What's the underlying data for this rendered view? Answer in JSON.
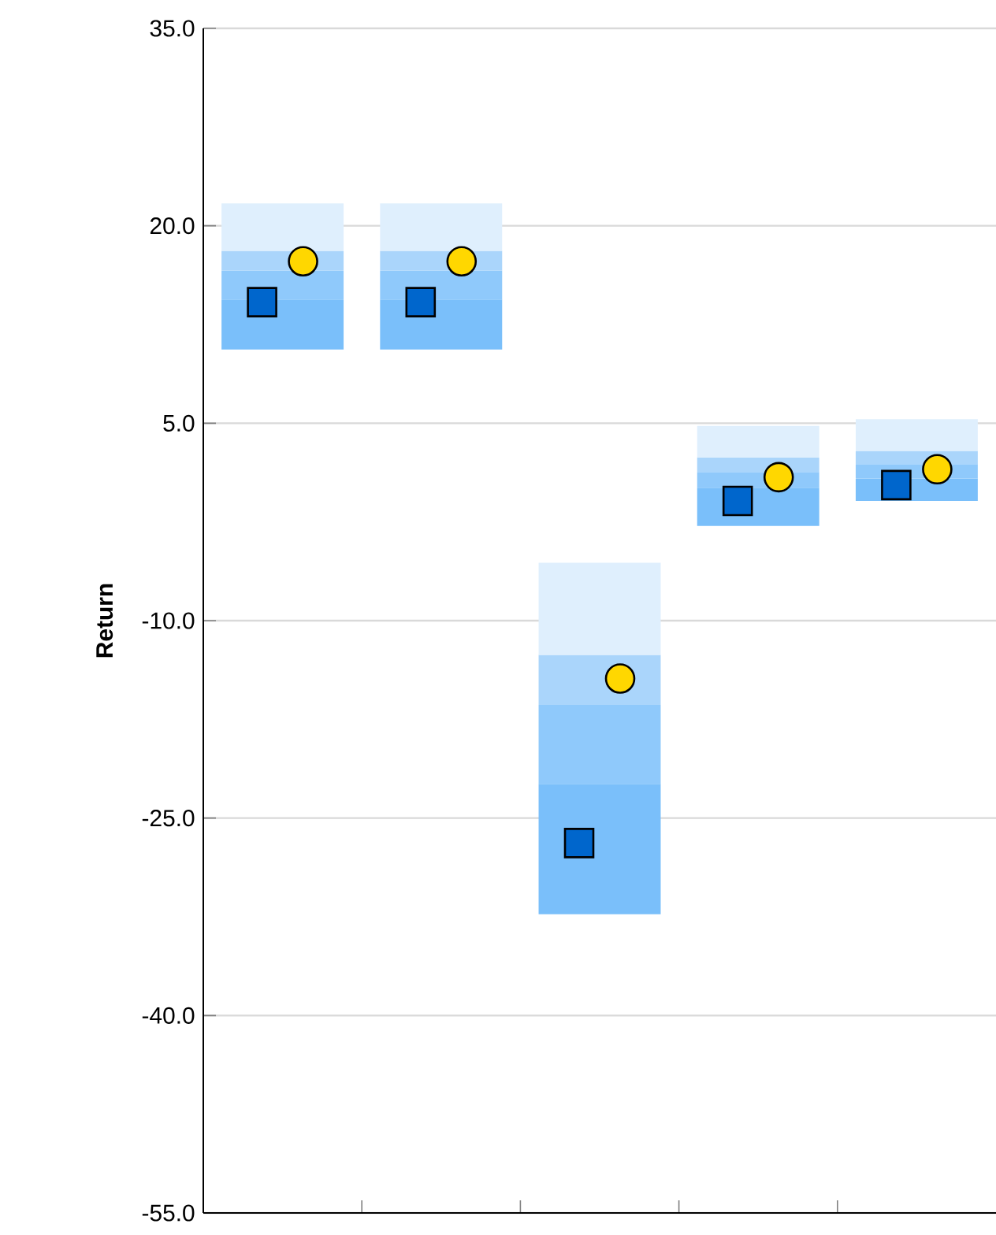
{
  "chart_data": {
    "type": "bar",
    "ylabel": "Return",
    "categories": [
      null,
      null,
      null,
      null,
      null
    ],
    "series": [
      {
        "color": "#7abffa",
        "base": [
          10.6,
          10.6,
          -32.3,
          -2.8,
          -0.9
        ],
        "values": [
          3.8,
          3.8,
          9.9,
          2.9,
          1.7
        ]
      },
      {
        "color": "#8fc9fb",
        "base": [
          14.4,
          14.4,
          -22.4,
          0.1,
          0.8
        ],
        "values": [
          2.2,
          2.2,
          6.0,
          1.2,
          1.1
        ]
      },
      {
        "color": "#aad5fb",
        "base": [
          16.6,
          16.6,
          -16.4,
          1.3,
          1.9
        ],
        "values": [
          1.5,
          1.5,
          3.8,
          1.1,
          1.0
        ]
      },
      {
        "color": "#dfeffd",
        "base": [
          18.1,
          18.1,
          -12.6,
          2.4,
          2.9
        ],
        "values": [
          3.6,
          3.6,
          7.0,
          2.4,
          2.4
        ]
      },
      {
        "type": "scatter",
        "marker": "square",
        "color": "#0066cc",
        "values": [
          14.2,
          14.2,
          -26.9,
          -0.9,
          0.3
        ]
      },
      {
        "type": "scatter",
        "marker": "circle",
        "color": "#ffd700",
        "values": [
          17.3,
          17.3,
          -14.4,
          0.9,
          1.5
        ]
      }
    ],
    "ylim": [
      -55,
      35
    ],
    "yticks": [
      {
        "value": 35,
        "label": "35.0"
      },
      {
        "value": 20,
        "label": "20.0"
      },
      {
        "value": 5,
        "label": "5.0"
      },
      {
        "value": -10,
        "label": "-10.0"
      },
      {
        "value": -25,
        "label": "-25.0"
      },
      {
        "value": -40,
        "label": "-40.0"
      },
      {
        "value": -55,
        "label": "-55.0"
      }
    ],
    "grid": "y",
    "tick_labels": "y"
  }
}
